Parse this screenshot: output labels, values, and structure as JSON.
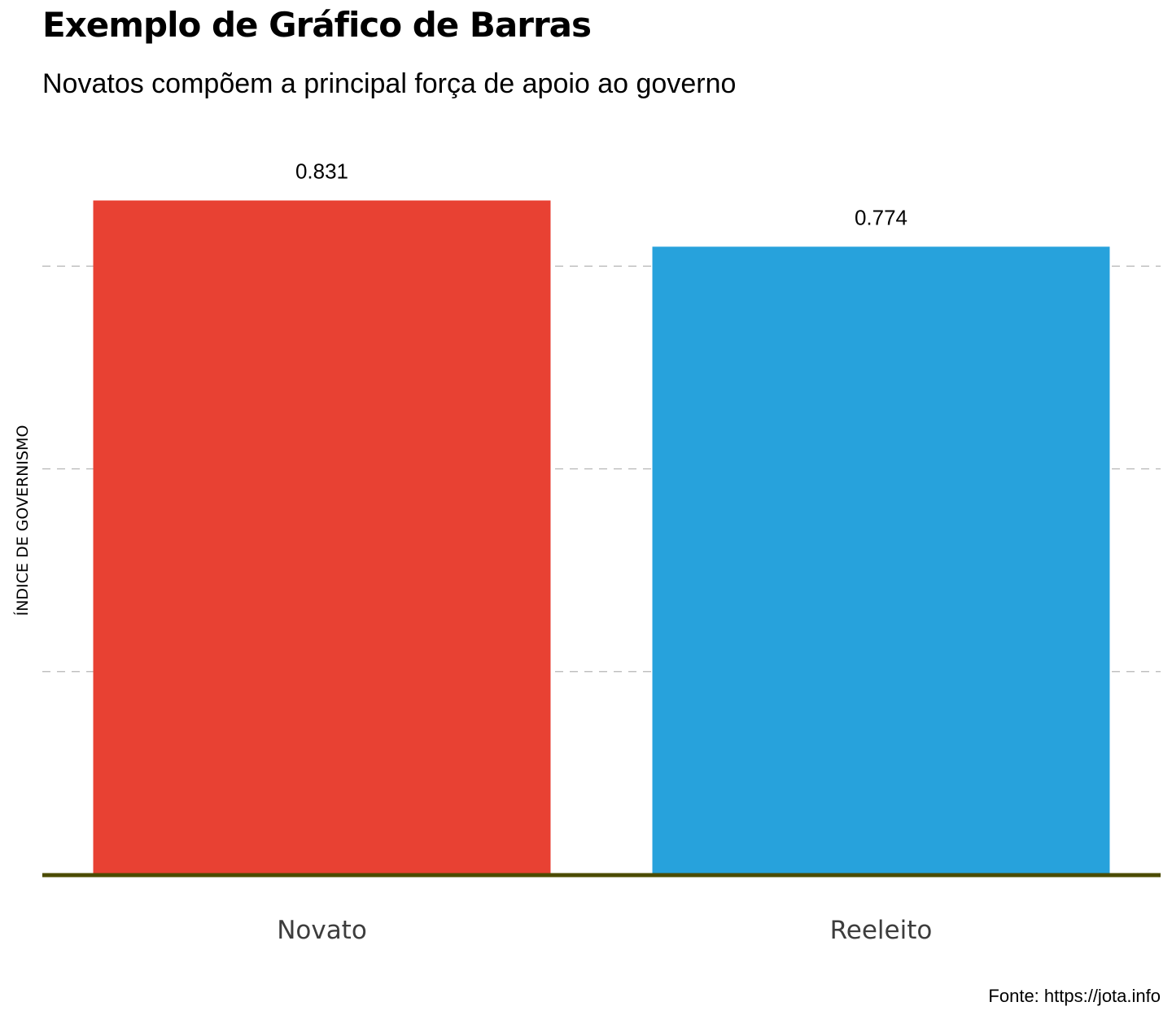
{
  "chart_data": {
    "type": "bar",
    "title": "Exemplo de Gráfico de Barras",
    "subtitle": "Novatos compõem a principal força de apoio ao governo",
    "xlabel": "",
    "ylabel": "ÍNDICE DE GOVERNISMO",
    "caption": "Fonte: https://jota.info",
    "categories": [
      "Novato",
      "Reeleito"
    ],
    "values": [
      0.831,
      0.774
    ],
    "value_labels": [
      "0.831",
      "0.774"
    ],
    "colors": [
      "#E84133",
      "#27A2DC"
    ],
    "ylim": [
      0,
      0.85
    ],
    "gridlines_y": [
      0.25,
      0.5,
      0.75
    ],
    "grid": "horizontal dashed, no y tick labels",
    "baseline_color": "#4B4B00",
    "legend": "none"
  }
}
